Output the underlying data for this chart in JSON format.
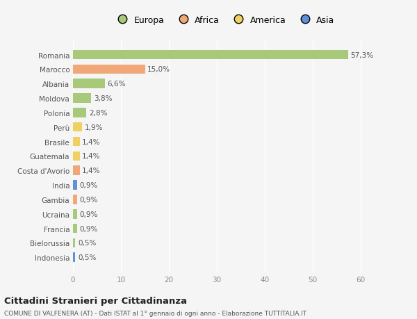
{
  "countries": [
    "Romania",
    "Marocco",
    "Albania",
    "Moldova",
    "Polonia",
    "Perù",
    "Brasile",
    "Guatemala",
    "Costa d'Avorio",
    "India",
    "Gambia",
    "Ucraina",
    "Francia",
    "Bielorussia",
    "Indonesia"
  ],
  "values": [
    57.3,
    15.0,
    6.6,
    3.8,
    2.8,
    1.9,
    1.4,
    1.4,
    1.4,
    0.9,
    0.9,
    0.9,
    0.9,
    0.5,
    0.5
  ],
  "labels": [
    "57,3%",
    "15,0%",
    "6,6%",
    "3,8%",
    "2,8%",
    "1,9%",
    "1,4%",
    "1,4%",
    "1,4%",
    "0,9%",
    "0,9%",
    "0,9%",
    "0,9%",
    "0,5%",
    "0,5%"
  ],
  "continents": [
    "Europa",
    "Africa",
    "Europa",
    "Europa",
    "Europa",
    "America",
    "America",
    "America",
    "Africa",
    "Asia",
    "Africa",
    "Europa",
    "Europa",
    "Europa",
    "Asia"
  ],
  "continent_colors": {
    "Europa": "#a8c87a",
    "Africa": "#f0a878",
    "America": "#f0d060",
    "Asia": "#6090d8"
  },
  "legend_labels": [
    "Europa",
    "Africa",
    "America",
    "Asia"
  ],
  "legend_colors": [
    "#a8c87a",
    "#f0a878",
    "#f0d060",
    "#6090d8"
  ],
  "xlim": [
    0,
    63
  ],
  "xticks": [
    0,
    10,
    20,
    30,
    40,
    50,
    60
  ],
  "title_main": "Cittadini Stranieri per Cittadinanza",
  "title_sub": "COMUNE DI VALFENERA (AT) - Dati ISTAT al 1° gennaio di ogni anno - Elaborazione TUTTITALIA.IT",
  "background_color": "#f5f5f5",
  "plot_bg_color": "#f0f0f0",
  "bar_height": 0.65,
  "grid_color": "#ffffff",
  "label_fontsize": 7.5,
  "tick_fontsize": 7.5,
  "legend_fontsize": 9.0
}
